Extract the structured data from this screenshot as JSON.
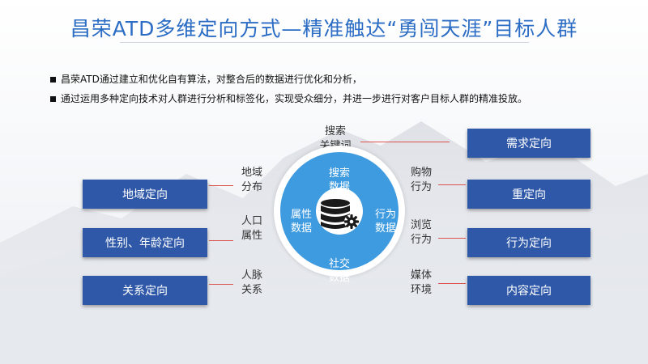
{
  "title": "昌荣ATD多维定向方式—精准触达“勇闯天涯”目标人群",
  "bullets": [
    "昌荣ATD通过建立和优化自有算法，对整合后的数据进行优化和分析，",
    "通过运用多种定向技术对人群进行分析和标签化，实现受众细分，并进一步进行对客户目标人群的精准投放。"
  ],
  "left_boxes": [
    "地域定向",
    "性别、年龄定向",
    "关系定向"
  ],
  "left_labels": [
    {
      "l1": "地域",
      "l2": "分布"
    },
    {
      "l1": "人口",
      "l2": "属性"
    },
    {
      "l1": "人脉",
      "l2": "关系"
    }
  ],
  "right_boxes": [
    "需求定向",
    "重定向",
    "行为定向",
    "内容定向"
  ],
  "right_labels": [
    {
      "l1": "搜索",
      "l2": "关键词"
    },
    {
      "l1": "购物",
      "l2": "行为"
    },
    {
      "l1": "浏览",
      "l2": "行为"
    },
    {
      "l1": "媒体",
      "l2": "环境"
    }
  ],
  "circle": {
    "top": {
      "l1": "搜索",
      "l2": "数据"
    },
    "left": {
      "l1": "属性",
      "l2": "数据"
    },
    "right": {
      "l1": "行为",
      "l2": "数据"
    },
    "bottom": {
      "l1": "社交",
      "l2": "数据"
    }
  },
  "icons": {
    "center": "database-gear-icon"
  },
  "colors": {
    "title": "#2b6cc4",
    "box": "#2f59a8",
    "ring": "#3f9be0",
    "connector": "#d9534f"
  }
}
